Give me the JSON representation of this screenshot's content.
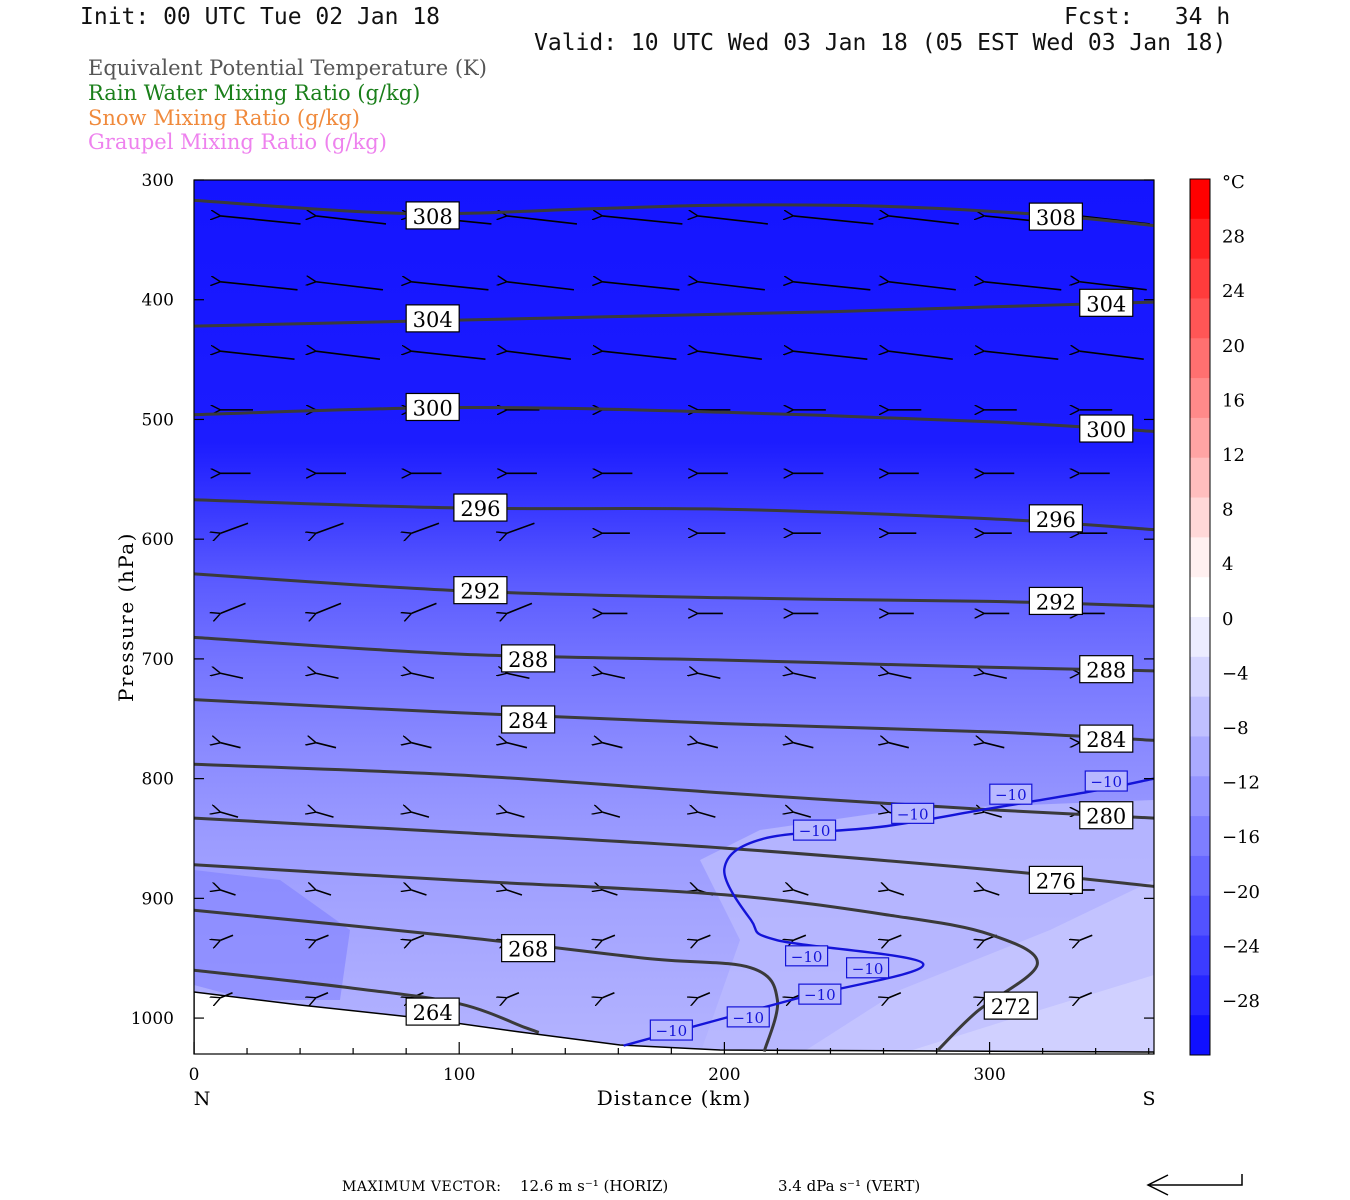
{
  "header": {
    "init": "Init: 00 UTC Tue 02 Jan 18",
    "fcst": "Fcst:   34 h",
    "valid": "Valid: 10 UTC Wed 03 Jan 18 (05 EST Wed 03 Jan 18)"
  },
  "legend": [
    {
      "text": "Equivalent Potential Temperature (K)",
      "color": "#555555"
    },
    {
      "text": "Rain Water Mixing Ratio (g/kg)",
      "color": "#1a7f1a"
    },
    {
      "text": "Snow Mixing Ratio (g/kg)",
      "color": "#f08a3c"
    },
    {
      "text": "Graupel Mixing Ratio (g/kg)",
      "color": "#ee82ee"
    }
  ],
  "chart_data": {
    "type": "cross-section",
    "xlabel": "Distance (km)",
    "ylabel": "Pressure (hPa)",
    "x_range": [
      0,
      362
    ],
    "y_range": [
      300,
      1030
    ],
    "x_ticks": [
      0,
      100,
      200,
      300
    ],
    "y_ticks": [
      300,
      400,
      500,
      600,
      700,
      800,
      900,
      1000
    ],
    "x_end_labels": {
      "left": "N",
      "right": "S"
    },
    "colorbar": {
      "unit": "°C",
      "levels": [
        28,
        24,
        20,
        16,
        12,
        8,
        4,
        0,
        -4,
        -8,
        -12,
        -16,
        -20,
        -24,
        -28
      ],
      "colors": [
        "#ff0000",
        "#ff2020",
        "#ff3c3c",
        "#ff5656",
        "#ff7070",
        "#ff8a8a",
        "#ffa4a4",
        "#ffbebe",
        "#ffd8d8",
        "#fff0f0",
        "#ffffff",
        "#ececff",
        "#d6d6ff",
        "#c0c0ff",
        "#aaaaff",
        "#9494ff",
        "#7e7eff",
        "#6868ff",
        "#5252ff",
        "#3c3cff",
        "#2626ff",
        "#1010ff"
      ]
    },
    "theta_e_contours": [
      {
        "level": "308",
        "points": [
          [
            0,
            317
          ],
          [
            80,
            328
          ],
          [
            150,
            324
          ],
          [
            200,
            321
          ],
          [
            260,
            322
          ],
          [
            320,
            329
          ],
          [
            362,
            338
          ]
        ]
      },
      {
        "level": "304",
        "points": [
          [
            0,
            422
          ],
          [
            80,
            418
          ],
          [
            160,
            414
          ],
          [
            240,
            410
          ],
          [
            300,
            406
          ],
          [
            362,
            402
          ]
        ]
      },
      {
        "level": "300",
        "points": [
          [
            0,
            496
          ],
          [
            100,
            490
          ],
          [
            200,
            494
          ],
          [
            300,
            502
          ],
          [
            362,
            510
          ]
        ]
      },
      {
        "level": "296",
        "points": [
          [
            0,
            567
          ],
          [
            100,
            574
          ],
          [
            200,
            575
          ],
          [
            300,
            583
          ],
          [
            362,
            592
          ]
        ]
      },
      {
        "level": "292",
        "points": [
          [
            0,
            629
          ],
          [
            100,
            643
          ],
          [
            200,
            649
          ],
          [
            300,
            652
          ],
          [
            362,
            656
          ]
        ]
      },
      {
        "level": "288",
        "points": [
          [
            0,
            682
          ],
          [
            100,
            696
          ],
          [
            200,
            701
          ],
          [
            300,
            707
          ],
          [
            362,
            710
          ]
        ]
      },
      {
        "level": "284",
        "points": [
          [
            0,
            734
          ],
          [
            100,
            745
          ],
          [
            200,
            754
          ],
          [
            300,
            761
          ],
          [
            362,
            768
          ]
        ]
      },
      {
        "level": "280",
        "points": [
          [
            0,
            788
          ],
          [
            100,
            797
          ],
          [
            200,
            812
          ],
          [
            300,
            826
          ],
          [
            362,
            833
          ]
        ]
      },
      {
        "level": "276",
        "points": [
          [
            0,
            833
          ],
          [
            100,
            845
          ],
          [
            200,
            858
          ],
          [
            300,
            876
          ],
          [
            362,
            890
          ]
        ]
      },
      {
        "level": "272",
        "points": [
          [
            0,
            872
          ],
          [
            100,
            885
          ],
          [
            200,
            897
          ],
          [
            265,
            915
          ],
          [
            300,
            930
          ],
          [
            318,
            955
          ],
          [
            295,
            995
          ],
          [
            280,
            1028
          ]
        ]
      },
      {
        "level": "268",
        "points": [
          [
            0,
            910
          ],
          [
            100,
            932
          ],
          [
            170,
            950
          ],
          [
            210,
            958
          ],
          [
            220,
            985
          ],
          [
            215,
            1028
          ]
        ]
      },
      {
        "level": "264",
        "points": [
          [
            0,
            960
          ],
          [
            60,
            975
          ],
          [
            100,
            988
          ],
          [
            125,
            1008
          ],
          [
            130,
            1012
          ]
        ]
      }
    ],
    "temperature_contour_minus10": {
      "level": "-10",
      "points": [
        [
          162,
          1023
        ],
        [
          225,
          985
        ],
        [
          275,
          955
        ],
        [
          220,
          935
        ],
        [
          210,
          918
        ],
        [
          200,
          875
        ],
        [
          215,
          850
        ],
        [
          260,
          840
        ],
        [
          300,
          825
        ],
        [
          340,
          810
        ],
        [
          362,
          800
        ]
      ]
    },
    "theta_e_label_positions": [
      {
        "text": "308",
        "x": 90,
        "y": 330
      },
      {
        "text": "308",
        "x": 325,
        "y": 331
      },
      {
        "text": "304",
        "x": 90,
        "y": 416
      },
      {
        "text": "304",
        "x": 344,
        "y": 403
      },
      {
        "text": "300",
        "x": 90,
        "y": 490
      },
      {
        "text": "300",
        "x": 344,
        "y": 508
      },
      {
        "text": "296",
        "x": 108,
        "y": 574
      },
      {
        "text": "296",
        "x": 325,
        "y": 583
      },
      {
        "text": "292",
        "x": 108,
        "y": 643
      },
      {
        "text": "292",
        "x": 325,
        "y": 652
      },
      {
        "text": "288",
        "x": 126,
        "y": 700
      },
      {
        "text": "288",
        "x": 344,
        "y": 709
      },
      {
        "text": "284",
        "x": 126,
        "y": 751
      },
      {
        "text": "284",
        "x": 344,
        "y": 767
      },
      {
        "text": "280",
        "x": 344,
        "y": 831
      },
      {
        "text": "276",
        "x": 325,
        "y": 885
      },
      {
        "text": "272",
        "x": 308,
        "y": 990
      },
      {
        "text": "268",
        "x": 126,
        "y": 942
      },
      {
        "text": "264",
        "x": 90,
        "y": 995
      }
    ],
    "minus10_label_positions": [
      {
        "text": "−10",
        "x": 180,
        "y": 1010
      },
      {
        "text": "−10",
        "x": 209,
        "y": 999
      },
      {
        "text": "−10",
        "x": 236,
        "y": 980
      },
      {
        "text": "−10",
        "x": 254,
        "y": 958
      },
      {
        "text": "−10",
        "x": 231,
        "y": 948
      },
      {
        "text": "−10",
        "x": 234,
        "y": 843
      },
      {
        "text": "−10",
        "x": 271,
        "y": 829
      },
      {
        "text": "−10",
        "x": 308,
        "y": 813
      },
      {
        "text": "−10",
        "x": 344,
        "y": 802
      }
    ]
  },
  "footer": {
    "max_vector_label": "MAXIMUM VECTOR:",
    "horiz": "12.6 m s⁻¹ (HORIZ)",
    "vert": "3.4 dPa s⁻¹ (VERT)"
  }
}
